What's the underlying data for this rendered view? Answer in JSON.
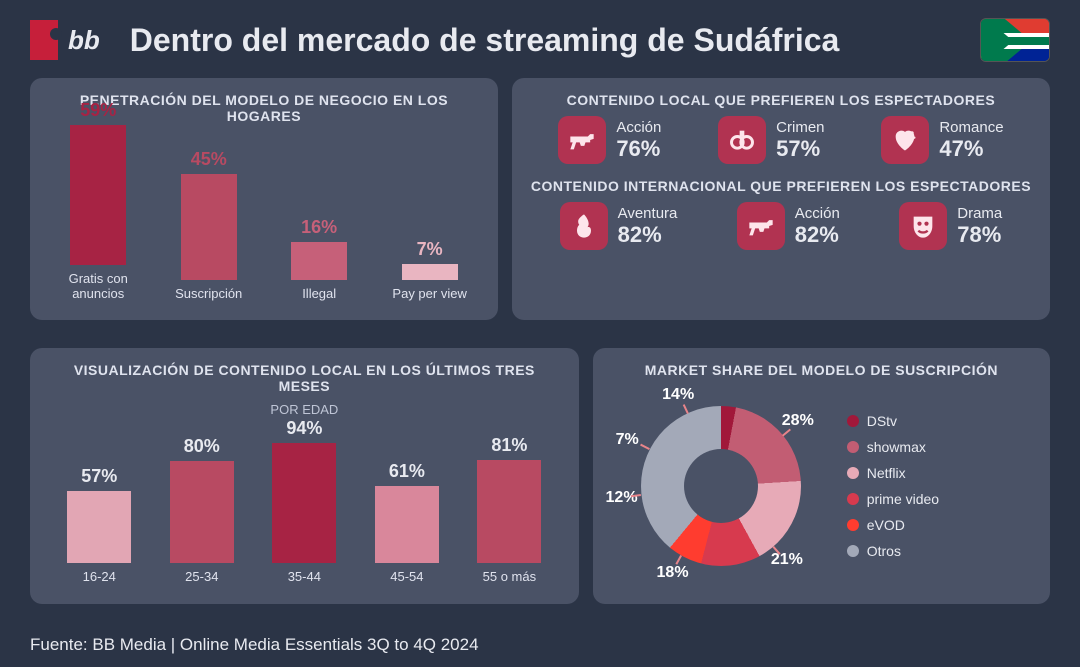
{
  "header": {
    "logo_text": "bb",
    "title": "Dentro del mercado de streaming de Sudáfrica"
  },
  "colors": {
    "bg": "#2b3446",
    "panel": "#4a5266",
    "text": "#e8eaf0",
    "bar_high": "#a72344",
    "bar_mid": "#c66079",
    "bar_low": "#e9b5c1"
  },
  "penetration": {
    "title": "PENETRACIÓN DEL MODELO DE NEGOCIO EN LOS HOGARES",
    "ylim": 59,
    "bars": [
      {
        "label": "Gratis con anuncios",
        "value": 59,
        "value_text": "59%",
        "color": "#a72344"
      },
      {
        "label": "Suscripción",
        "value": 45,
        "value_text": "45%",
        "color": "#b84a62"
      },
      {
        "label": "Illegal",
        "value": 16,
        "value_text": "16%",
        "color": "#c66079"
      },
      {
        "label": "Pay per view",
        "value": 7,
        "value_text": "7%",
        "color": "#e9b5c1"
      }
    ]
  },
  "local_genres": {
    "title": "CONTENIDO LOCAL QUE PREFIEREN LOS ESPECTADORES",
    "items": [
      {
        "name": "Acción",
        "pct": "76%",
        "icon": "gun"
      },
      {
        "name": "Crimen",
        "pct": "57%",
        "icon": "cuffs"
      },
      {
        "name": "Romance",
        "pct": "47%",
        "icon": "heart"
      }
    ]
  },
  "intl_genres": {
    "title": "CONTENIDO INTERNACIONAL QUE PREFIEREN LOS ESPECTADORES",
    "items": [
      {
        "name": "Aventura",
        "pct": "82%",
        "icon": "fire"
      },
      {
        "name": "Acción",
        "pct": "82%",
        "icon": "gun"
      },
      {
        "name": "Drama",
        "pct": "78%",
        "icon": "mask"
      }
    ]
  },
  "by_age": {
    "title": "VISUALIZACIÓN DE CONTENIDO LOCAL EN LOS ÚLTIMOS TRES MESES",
    "subtitle": "POR EDAD",
    "ylim": 94,
    "bars": [
      {
        "label": "16-24",
        "value": 57,
        "value_text": "57%",
        "color": "#e2a6b4"
      },
      {
        "label": "25-34",
        "value": 80,
        "value_text": "80%",
        "color": "#b84a62"
      },
      {
        "label": "35-44",
        "value": 94,
        "value_text": "94%",
        "color": "#a72344"
      },
      {
        "label": "45-54",
        "value": 61,
        "value_text": "61%",
        "color": "#d9879b"
      },
      {
        "label": "55 o más",
        "value": 81,
        "value_text": "81%",
        "color": "#b84a62"
      }
    ]
  },
  "market_share": {
    "title": "MARKET SHARE DEL MODELO DE SUSCRIPCIÓN",
    "slices": [
      {
        "name": "DStv",
        "value": 28,
        "label": "28%",
        "color": "#a1183a"
      },
      {
        "name": "showmax",
        "value": 21,
        "label": "21%",
        "color": "#c25d73"
      },
      {
        "name": "Netflix",
        "value": 18,
        "label": "18%",
        "color": "#e7aab7"
      },
      {
        "name": "prime video",
        "value": 12,
        "label": "12%",
        "color": "#d73a4e"
      },
      {
        "name": "eVOD",
        "value": 7,
        "label": "7%",
        "color": "#ff3c2f"
      },
      {
        "name": "Otros",
        "value": 14,
        "label": "14%",
        "color": "#a3a9b8"
      }
    ]
  },
  "footer": "Fuente: BB Media | Online Media Essentials 3Q to 4Q 2024"
}
